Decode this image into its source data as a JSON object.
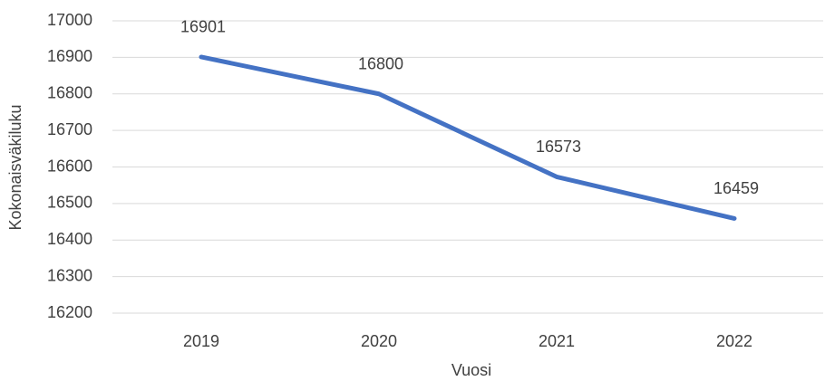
{
  "chart_data": {
    "type": "line",
    "x_label": "Vuosi",
    "y_label": "Kokonaisväkiluku",
    "categories": [
      "2019",
      "2020",
      "2021",
      "2022"
    ],
    "values": [
      16901,
      16800,
      16573,
      16459
    ],
    "color": "#4472c4",
    "ylim": [
      16200,
      17000
    ],
    "yticks": [
      16200,
      16300,
      16400,
      16500,
      16600,
      16700,
      16800,
      16900,
      17000
    ],
    "grid": true
  }
}
